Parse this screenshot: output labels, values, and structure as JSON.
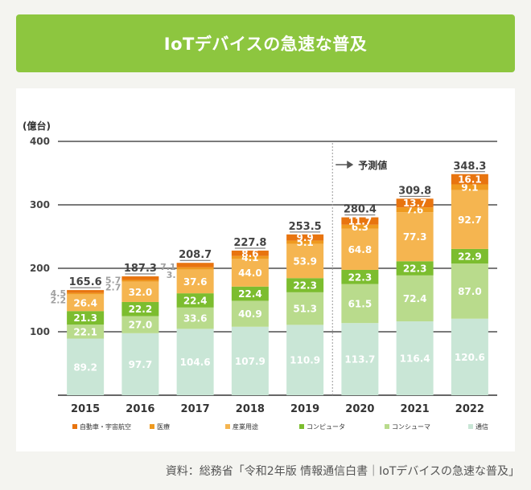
{
  "title": "IoTデバイスの急速な普及",
  "source": "資料：総務省「令和2年版 情報通信白書｜IoTデバイスの急速な普及」",
  "chart_data": {
    "type": "bar",
    "stacked": true,
    "unit_label": "(億台)",
    "forecast_label": "予測値",
    "forecast_from": "2020",
    "ylim": [
      0,
      400
    ],
    "yticks": [
      100,
      200,
      300,
      400
    ],
    "categories": [
      "2015",
      "2016",
      "2017",
      "2018",
      "2019",
      "2020",
      "2021",
      "2022"
    ],
    "series": [
      {
        "name": "通信",
        "color": "#c9e6d6",
        "values": [
          89.2,
          97.7,
          104.6,
          107.9,
          110.9,
          113.7,
          116.4,
          120.6
        ]
      },
      {
        "name": "コンシューマ",
        "color": "#b9db8c",
        "values": [
          22.1,
          27.0,
          33.6,
          40.9,
          51.3,
          61.5,
          72.4,
          87.0
        ]
      },
      {
        "name": "コンピュータ",
        "color": "#7cbd2f",
        "values": [
          21.3,
          22.2,
          22.4,
          22.4,
          22.3,
          22.3,
          22.3,
          22.9
        ]
      },
      {
        "name": "産業用途",
        "color": "#f5b550",
        "values": [
          26.4,
          32.0,
          37.6,
          44.0,
          53.9,
          64.8,
          77.3,
          92.7
        ]
      },
      {
        "name": "医療",
        "color": "#ef9a1f",
        "values": [
          2.2,
          2.7,
          3.3,
          4.1,
          5.1,
          6.3,
          7.6,
          9.1
        ]
      },
      {
        "name": "自動車・宇宙航空",
        "color": "#e8740f",
        "values": [
          4.5,
          5.7,
          7.1,
          8.6,
          9.9,
          11.7,
          13.7,
          16.1
        ]
      }
    ],
    "value_labels": [
      [
        "89.2",
        "97.7",
        "104.6",
        "107.9",
        "110.9",
        "113.7",
        "116.4",
        "120.6"
      ],
      [
        "22.1",
        "27.0",
        "33.6",
        "40.9",
        "51.3",
        "61.5",
        "72.4",
        "87.0"
      ],
      [
        "21.3",
        "22.2",
        "22.4",
        "22.4",
        "22.3",
        "22.3",
        "22.3",
        "22.9"
      ],
      [
        "26.4",
        "32.0",
        "37.6",
        "44.0",
        "53.9",
        "64.8",
        "77.3",
        "92.7"
      ],
      [
        "2.2",
        "2.7",
        "3.",
        "4.1",
        "5.1",
        "6.3",
        "7.6",
        "9.1"
      ],
      [
        "4.5",
        "5.7",
        "7.1",
        "8.6",
        "9.9",
        "11.7",
        "13.7",
        "16.1"
      ]
    ],
    "totals": [
      "165.6",
      "187.3",
      "208.7",
      "227.8",
      "253.5",
      "280.4",
      "309.8",
      "348.3"
    ],
    "legend_order": [
      "自動車・宇宙航空",
      "医療",
      "産業用途",
      "コンピュータ",
      "コンシューマ",
      "通信"
    ],
    "legend_placement": "bottom"
  }
}
